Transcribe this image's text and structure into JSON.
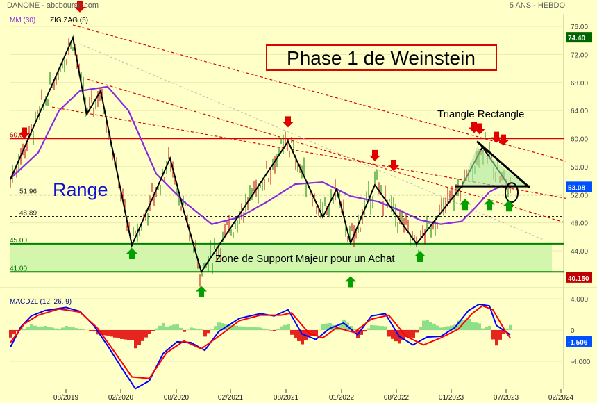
{
  "header": {
    "left": "DANONE - abcbourse.com",
    "right": "5 ANS - HEBDO"
  },
  "legend": {
    "ma": "MM (30)",
    "zigzag": "ZIG ZAG (5)"
  },
  "annotations": {
    "phase": "Phase 1 de Weinstein",
    "triangle": "Triangle Rectangle",
    "range": "Range",
    "zone": "Zone de Support Majeur pour un Achat"
  },
  "levels_text": [
    "60.00",
    "51.96",
    "48.89",
    "45.00",
    "41.00"
  ],
  "chart_data": [
    {
      "type": "line",
      "title": "DANONE - abcbourse.com",
      "subtitle": "5 ANS - HEBDO",
      "x_tick_labels": [
        "08/2019",
        "02/2020",
        "08/2020",
        "02/2021",
        "08/2021",
        "01/2022",
        "08/2022",
        "01/2023",
        "07/2023",
        "02/2024"
      ],
      "y_tick_labels": [
        76,
        72,
        68,
        64,
        60,
        56,
        52,
        48,
        44
      ],
      "ylim": [
        40,
        77
      ],
      "last_price_label": "53.08",
      "high_label": "74.40",
      "low_label": "40.150",
      "horizontal_levels": [
        60.0,
        51.96,
        48.89,
        45.0,
        41.0
      ],
      "series": [
        {
          "name": "ZIG ZAG (5)",
          "color": "#000000",
          "points": [
            [
              0,
              54.2
            ],
            [
              90,
              74.4
            ],
            [
              110,
              63.5
            ],
            [
              130,
              66.8
            ],
            [
              175,
              44.8
            ],
            [
              230,
              57.2
            ],
            [
              250,
              49.6
            ],
            [
              275,
              41.0
            ],
            [
              400,
              59.6
            ],
            [
              450,
              48.8
            ],
            [
              470,
              52.8
            ],
            [
              490,
              45.1
            ],
            [
              525,
              53.4
            ],
            [
              585,
              45.0
            ],
            [
              650,
              53.2
            ],
            [
              680,
              58.8
            ],
            [
              720,
              53.0
            ]
          ]
        },
        {
          "name": "MM (30)",
          "color": "#8a2be2",
          "points": [
            [
              0,
              54.3
            ],
            [
              40,
              58.0
            ],
            [
              70,
              64.0
            ],
            [
              100,
              66.8
            ],
            [
              140,
              67.4
            ],
            [
              170,
              64.0
            ],
            [
              210,
              55.0
            ],
            [
              250,
              51.0
            ],
            [
              290,
              47.8
            ],
            [
              330,
              48.8
            ],
            [
              370,
              51.0
            ],
            [
              410,
              53.5
            ],
            [
              450,
              53.8
            ],
            [
              490,
              51.8
            ],
            [
              530,
              51.0
            ],
            [
              560,
              49.8
            ],
            [
              590,
              48.4
            ],
            [
              620,
              47.8
            ],
            [
              650,
              48.2
            ],
            [
              670,
              50.2
            ],
            [
              690,
              52.4
            ],
            [
              710,
              53.4
            ]
          ]
        },
        {
          "name": "MACD",
          "color": "#0000ff",
          "points": [
            [
              0,
              -2.2
            ],
            [
              15,
              0.4
            ],
            [
              30,
              1.8
            ],
            [
              50,
              2.5
            ],
            [
              80,
              2.9
            ],
            [
              100,
              2.4
            ],
            [
              120,
              0.6
            ],
            [
              140,
              -2.0
            ],
            [
              160,
              -4.8
            ],
            [
              180,
              -7.5
            ],
            [
              200,
              -6.5
            ],
            [
              220,
              -3.0
            ],
            [
              240,
              -1.5
            ],
            [
              260,
              -1.6
            ],
            [
              280,
              -2.6
            ],
            [
              300,
              -0.2
            ],
            [
              330,
              1.5
            ],
            [
              360,
              2.1
            ],
            [
              380,
              1.8
            ],
            [
              400,
              2.6
            ],
            [
              420,
              -0.5
            ],
            [
              440,
              -1.2
            ],
            [
              460,
              0.2
            ],
            [
              480,
              0.9
            ],
            [
              500,
              -0.6
            ],
            [
              520,
              1.8
            ],
            [
              540,
              2.1
            ],
            [
              560,
              -0.8
            ],
            [
              580,
              -1.9
            ],
            [
              600,
              -0.9
            ],
            [
              620,
              -0.8
            ],
            [
              640,
              0.3
            ],
            [
              660,
              2.5
            ],
            [
              675,
              3.3
            ],
            [
              690,
              3.1
            ],
            [
              700,
              0.6
            ],
            [
              720,
              -0.6
            ]
          ]
        },
        {
          "name": "Signal",
          "color": "#ff0000",
          "points": [
            [
              0,
              -1.6
            ],
            [
              20,
              0.8
            ],
            [
              40,
              1.9
            ],
            [
              70,
              2.7
            ],
            [
              100,
              2.3
            ],
            [
              125,
              0.3
            ],
            [
              150,
              -2.8
            ],
            [
              175,
              -6.0
            ],
            [
              200,
              -6.2
            ],
            [
              225,
              -2.9
            ],
            [
              250,
              -1.4
            ],
            [
              275,
              -2.4
            ],
            [
              300,
              -0.8
            ],
            [
              330,
              1.2
            ],
            [
              360,
              1.9
            ],
            [
              390,
              1.9
            ],
            [
              405,
              2.2
            ],
            [
              430,
              -0.4
            ],
            [
              450,
              -1.0
            ],
            [
              470,
              0.3
            ],
            [
              495,
              -0.3
            ],
            [
              520,
              1.4
            ],
            [
              545,
              1.9
            ],
            [
              570,
              -0.8
            ],
            [
              595,
              -1.9
            ],
            [
              620,
              -1.0
            ],
            [
              645,
              0.1
            ],
            [
              665,
              2.1
            ],
            [
              680,
              3.1
            ],
            [
              695,
              2.6
            ],
            [
              712,
              0.0
            ],
            [
              720,
              -1.0
            ]
          ]
        }
      ],
      "macd_panel": {
        "title": "MACDZL (12, 26, 9)",
        "y_tick_labels": [
          4,
          0,
          -4
        ],
        "last_value_label": "-1.506"
      }
    }
  ]
}
